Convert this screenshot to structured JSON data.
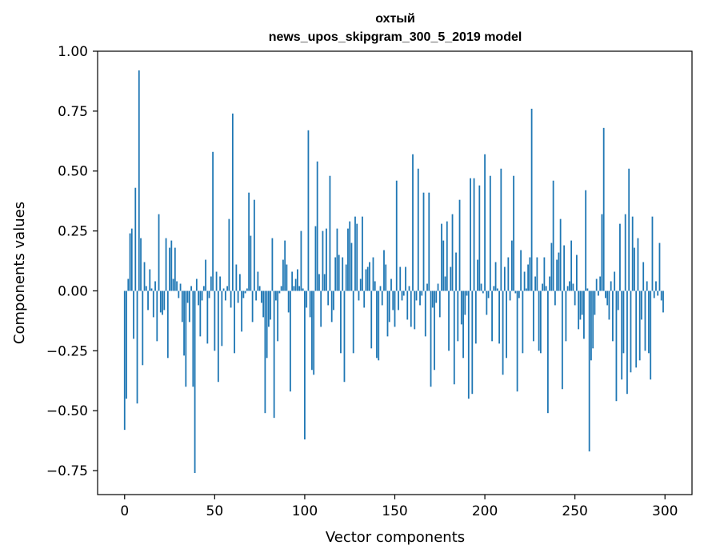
{
  "chart_data": {
    "type": "bar",
    "title_line1": "охтый",
    "title_line2": "news_upos_skipgram_300_5_2019 model",
    "xlabel": "Vector components",
    "ylabel": "Components values",
    "xlim": [
      -15,
      315
    ],
    "ylim": [
      -0.85,
      1.0
    ],
    "xticks": [
      0,
      50,
      100,
      150,
      200,
      250,
      300
    ],
    "xtick_labels": [
      "0",
      "50",
      "100",
      "150",
      "200",
      "250",
      "300"
    ],
    "yticks": [
      1.0,
      0.75,
      0.5,
      0.25,
      0.0,
      -0.25,
      -0.5,
      -0.75
    ],
    "ytick_labels": [
      "1.00",
      "0.75",
      "0.50",
      "0.25",
      "0.00",
      "−0.25",
      "−0.50",
      "−0.75"
    ],
    "bar_color": "#1f77b4",
    "values": [
      -0.58,
      -0.45,
      0.05,
      0.24,
      0.26,
      -0.2,
      0.43,
      -0.47,
      0.92,
      0.22,
      -0.31,
      0.12,
      0.02,
      -0.08,
      0.09,
      0.01,
      -0.11,
      0.04,
      -0.21,
      0.32,
      -0.09,
      -0.1,
      -0.08,
      0.22,
      -0.28,
      0.18,
      0.21,
      0.05,
      0.18,
      0.04,
      -0.03,
      0.03,
      -0.13,
      -0.27,
      -0.4,
      -0.05,
      -0.13,
      0.02,
      -0.4,
      -0.76,
      0.05,
      -0.06,
      -0.19,
      -0.04,
      0.02,
      0.13,
      -0.22,
      -0.03,
      0.06,
      0.58,
      -0.25,
      0.08,
      -0.38,
      0.06,
      -0.23,
      0.01,
      -0.04,
      0.02,
      0.3,
      -0.07,
      0.74,
      -0.26,
      0.11,
      -0.05,
      0.07,
      -0.17,
      -0.03,
      -0.01,
      0.01,
      0.41,
      0.23,
      -0.13,
      0.38,
      -0.04,
      0.08,
      0.02,
      -0.05,
      -0.11,
      -0.51,
      -0.28,
      -0.15,
      -0.12,
      0.22,
      -0.53,
      -0.04,
      -0.21,
      -0.01,
      0.02,
      0.13,
      0.21,
      0.11,
      -0.09,
      -0.42,
      0.08,
      0.02,
      0.05,
      0.09,
      0.02,
      0.25,
      0.01,
      -0.62,
      -0.07,
      0.67,
      -0.11,
      -0.33,
      -0.35,
      0.27,
      0.54,
      0.07,
      -0.15,
      0.25,
      0.07,
      0.26,
      -0.06,
      0.48,
      -0.13,
      -0.08,
      0.14,
      0.26,
      0.15,
      -0.26,
      0.14,
      -0.38,
      0.11,
      0.26,
      0.29,
      0.2,
      -0.26,
      0.31,
      0.28,
      -0.04,
      0.05,
      0.31,
      -0.07,
      0.09,
      0.1,
      0.12,
      -0.24,
      0.14,
      0.04,
      -0.28,
      -0.29,
      0.02,
      -0.06,
      0.17,
      0.11,
      -0.19,
      -0.13,
      0.05,
      -0.08,
      -0.15,
      0.46,
      -0.08,
      0.1,
      -0.04,
      -0.02,
      0.1,
      -0.12,
      0.02,
      -0.15,
      0.57,
      -0.16,
      -0.04,
      0.51,
      -0.06,
      -0.02,
      0.41,
      -0.19,
      0.03,
      0.41,
      -0.4,
      -0.07,
      -0.33,
      -0.05,
      0.03,
      -0.11,
      0.28,
      0.21,
      0.06,
      0.29,
      -0.25,
      0.1,
      0.32,
      -0.39,
      0.16,
      -0.21,
      0.38,
      -0.14,
      -0.28,
      -0.1,
      -0.02,
      -0.45,
      0.47,
      -0.43,
      0.47,
      -0.22,
      0.13,
      0.44,
      0.03,
      -0.01,
      0.57,
      -0.1,
      -0.03,
      0.48,
      -0.21,
      0.02,
      0.12,
      0.01,
      -0.22,
      0.51,
      -0.35,
      0.1,
      -0.28,
      0.14,
      -0.04,
      0.21,
      0.48,
      -0.01,
      -0.42,
      -0.03,
      0.17,
      -0.26,
      0.08,
      0.01,
      0.11,
      0.14,
      0.76,
      -0.21,
      0.06,
      0.14,
      -0.25,
      -0.26,
      0.03,
      0.14,
      0.02,
      -0.51,
      0.06,
      0.2,
      0.46,
      -0.06,
      0.13,
      0.16,
      0.3,
      -0.41,
      0.19,
      -0.21,
      0.02,
      0.04,
      0.21,
      0.03,
      -0.06,
      0.15,
      -0.16,
      -0.12,
      -0.1,
      -0.2,
      0.42,
      0.01,
      -0.67,
      -0.29,
      -0.24,
      -0.1,
      0.05,
      -0.02,
      0.06,
      0.32,
      0.68,
      -0.03,
      -0.06,
      -0.12,
      0.04,
      -0.21,
      0.08,
      -0.46,
      -0.08,
      0.28,
      -0.37,
      -0.26,
      0.32,
      -0.43,
      0.51,
      -0.34,
      0.31,
      0.18,
      -0.32,
      0.22,
      -0.29,
      -0.12,
      0.12,
      -0.25,
      0.04,
      -0.26,
      -0.37,
      0.31,
      -0.03,
      0.04,
      -0.02,
      0.2,
      -0.04,
      -0.09
    ]
  }
}
